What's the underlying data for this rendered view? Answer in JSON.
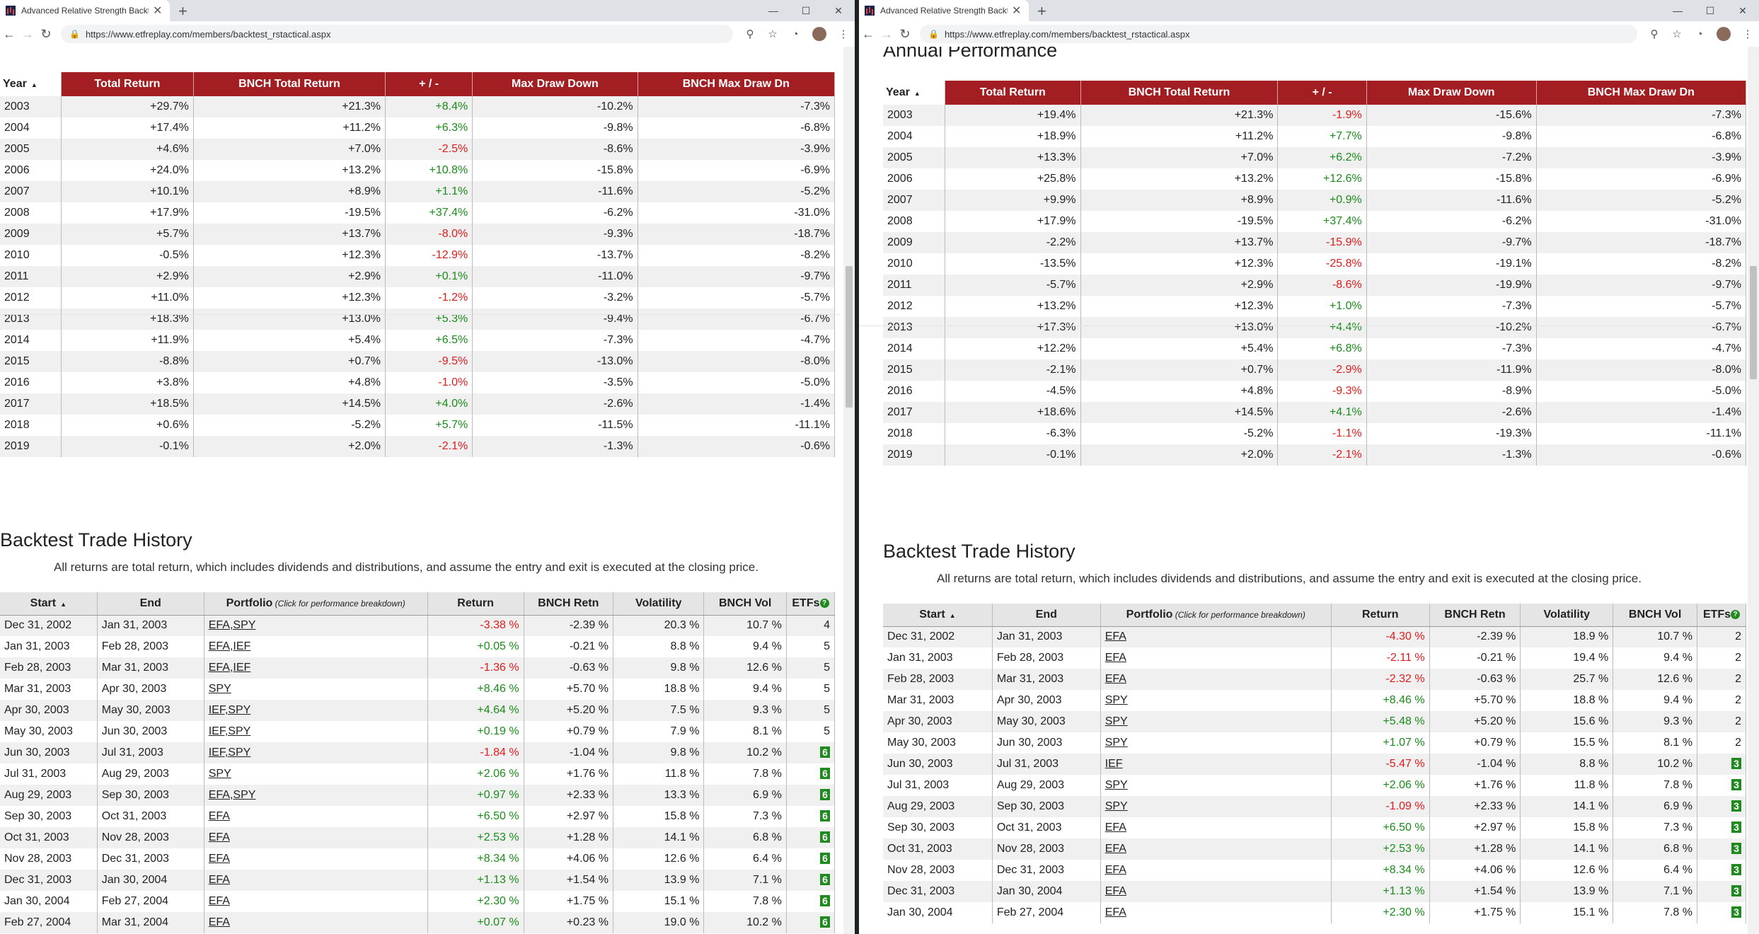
{
  "browser": {
    "tab_title": "Advanced Relative Strength Backtest",
    "url": "https://www.etfreplay.com/members/backtest_rstactical.aspx"
  },
  "annual_headers": [
    "Year",
    "Total Return",
    "BNCH Total Return",
    "+ / -",
    "Max Draw Down",
    "BNCH Max Draw Dn"
  ],
  "trade_headers": {
    "start": "Start",
    "end": "End",
    "portfolio": "Portfolio",
    "portfolio_note": "(Click for performance breakdown)",
    "ret": "Return",
    "bret": "BNCH Retn",
    "vol": "Volatility",
    "bvol": "BNCH Vol",
    "etfs": "ETFs",
    "help": "?"
  },
  "section_annual": "Annual Performance",
  "section_trade": "Backtest Trade History",
  "trade_note": "All returns are total return, which includes dividends and distributions, and assume the entry and exit is executed at the closing price.",
  "left": {
    "annual": [
      [
        "2003",
        "+29.7%",
        "+21.3%",
        "+8.4%",
        "-10.2%",
        "-7.3%"
      ],
      [
        "2004",
        "+17.4%",
        "+11.2%",
        "+6.3%",
        "-9.8%",
        "-6.8%"
      ],
      [
        "2005",
        "+4.6%",
        "+7.0%",
        "-2.5%",
        "-8.6%",
        "-3.9%"
      ],
      [
        "2006",
        "+24.0%",
        "+13.2%",
        "+10.8%",
        "-15.8%",
        "-6.9%"
      ],
      [
        "2007",
        "+10.1%",
        "+8.9%",
        "+1.1%",
        "-11.6%",
        "-5.2%"
      ],
      [
        "2008",
        "+17.9%",
        "-19.5%",
        "+37.4%",
        "-6.2%",
        "-31.0%"
      ],
      [
        "2009",
        "+5.7%",
        "+13.7%",
        "-8.0%",
        "-9.3%",
        "-18.7%"
      ],
      [
        "2010",
        "-0.5%",
        "+12.3%",
        "-12.9%",
        "-13.7%",
        "-8.2%"
      ],
      [
        "2011",
        "+2.9%",
        "+2.9%",
        "+0.1%",
        "-11.0%",
        "-9.7%"
      ],
      [
        "2012",
        "+11.0%",
        "+12.3%",
        "-1.2%",
        "-3.2%",
        "-5.7%"
      ],
      [
        "2013",
        "+18.3%",
        "+13.0%",
        "+5.3%",
        "-9.4%",
        "-6.7%"
      ],
      [
        "2014",
        "+11.9%",
        "+5.4%",
        "+6.5%",
        "-7.3%",
        "-4.7%"
      ],
      [
        "2015",
        "-8.8%",
        "+0.7%",
        "-9.5%",
        "-13.0%",
        "-8.0%"
      ],
      [
        "2016",
        "+3.8%",
        "+4.8%",
        "-1.0%",
        "-3.5%",
        "-5.0%"
      ],
      [
        "2017",
        "+18.5%",
        "+14.5%",
        "+4.0%",
        "-2.6%",
        "-1.4%"
      ],
      [
        "2018",
        "+0.6%",
        "-5.2%",
        "+5.7%",
        "-11.5%",
        "-11.1%"
      ],
      [
        "2019",
        "-0.1%",
        "+2.0%",
        "-2.1%",
        "-1.3%",
        "-0.6%"
      ]
    ],
    "trades": [
      [
        "Dec 31, 2002",
        "Jan 31, 2003",
        "EFA,SPY",
        "-3.38 %",
        "-2.39 %",
        "20.3 %",
        "10.7 %",
        "4"
      ],
      [
        "Jan 31, 2003",
        "Feb 28, 2003",
        "EFA,IEF",
        "+0.05 %",
        "-0.21 %",
        "8.8 %",
        "9.4 %",
        "5"
      ],
      [
        "Feb 28, 2003",
        "Mar 31, 2003",
        "EFA,IEF",
        "-1.36 %",
        "-0.63 %",
        "9.8 %",
        "12.6 %",
        "5"
      ],
      [
        "Mar 31, 2003",
        "Apr 30, 2003",
        "SPY",
        "+8.46 %",
        "+5.70 %",
        "18.8 %",
        "9.4 %",
        "5"
      ],
      [
        "Apr 30, 2003",
        "May 30, 2003",
        "IEF,SPY",
        "+4.64 %",
        "+5.20 %",
        "7.5 %",
        "9.3 %",
        "5"
      ],
      [
        "May 30, 2003",
        "Jun 30, 2003",
        "IEF,SPY",
        "+0.19 %",
        "+0.79 %",
        "7.9 %",
        "8.1 %",
        "5"
      ],
      [
        "Jun 30, 2003",
        "Jul 31, 2003",
        "IEF,SPY",
        "-1.84 %",
        "-1.04 %",
        "9.8 %",
        "10.2 %",
        "6"
      ],
      [
        "Jul 31, 2003",
        "Aug 29, 2003",
        "SPY",
        "+2.06 %",
        "+1.76 %",
        "11.8 %",
        "7.8 %",
        "6"
      ],
      [
        "Aug 29, 2003",
        "Sep 30, 2003",
        "EFA,SPY",
        "+0.97 %",
        "+2.33 %",
        "13.3 %",
        "6.9 %",
        "6"
      ],
      [
        "Sep 30, 2003",
        "Oct 31, 2003",
        "EFA",
        "+6.50 %",
        "+2.97 %",
        "15.8 %",
        "7.3 %",
        "6"
      ],
      [
        "Oct 31, 2003",
        "Nov 28, 2003",
        "EFA",
        "+2.53 %",
        "+1.28 %",
        "14.1 %",
        "6.8 %",
        "6"
      ],
      [
        "Nov 28, 2003",
        "Dec 31, 2003",
        "EFA",
        "+8.34 %",
        "+4.06 %",
        "12.6 %",
        "6.4 %",
        "6"
      ],
      [
        "Dec 31, 2003",
        "Jan 30, 2004",
        "EFA",
        "+1.13 %",
        "+1.54 %",
        "13.9 %",
        "7.1 %",
        "6"
      ],
      [
        "Jan 30, 2004",
        "Feb 27, 2004",
        "EFA",
        "+2.30 %",
        "+1.75 %",
        "15.1 %",
        "7.8 %",
        "6"
      ],
      [
        "Feb 27, 2004",
        "Mar 31, 2004",
        "EFA",
        "+0.07 %",
        "+0.23 %",
        "19.0 %",
        "10.2 %",
        "6"
      ]
    ]
  },
  "right": {
    "annual": [
      [
        "2003",
        "+19.4%",
        "+21.3%",
        "-1.9%",
        "-15.6%",
        "-7.3%"
      ],
      [
        "2004",
        "+18.9%",
        "+11.2%",
        "+7.7%",
        "-9.8%",
        "-6.8%"
      ],
      [
        "2005",
        "+13.3%",
        "+7.0%",
        "+6.2%",
        "-7.2%",
        "-3.9%"
      ],
      [
        "2006",
        "+25.8%",
        "+13.2%",
        "+12.6%",
        "-15.8%",
        "-6.9%"
      ],
      [
        "2007",
        "+9.9%",
        "+8.9%",
        "+0.9%",
        "-11.6%",
        "-5.2%"
      ],
      [
        "2008",
        "+17.9%",
        "-19.5%",
        "+37.4%",
        "-6.2%",
        "-31.0%"
      ],
      [
        "2009",
        "-2.2%",
        "+13.7%",
        "-15.9%",
        "-9.7%",
        "-18.7%"
      ],
      [
        "2010",
        "-13.5%",
        "+12.3%",
        "-25.8%",
        "-19.1%",
        "-8.2%"
      ],
      [
        "2011",
        "-5.7%",
        "+2.9%",
        "-8.6%",
        "-19.9%",
        "-9.7%"
      ],
      [
        "2012",
        "+13.2%",
        "+12.3%",
        "+1.0%",
        "-7.3%",
        "-5.7%"
      ],
      [
        "2013",
        "+17.3%",
        "+13.0%",
        "+4.4%",
        "-10.2%",
        "-6.7%"
      ],
      [
        "2014",
        "+12.2%",
        "+5.4%",
        "+6.8%",
        "-7.3%",
        "-4.7%"
      ],
      [
        "2015",
        "-2.1%",
        "+0.7%",
        "-2.9%",
        "-11.9%",
        "-8.0%"
      ],
      [
        "2016",
        "-4.5%",
        "+4.8%",
        "-9.3%",
        "-8.9%",
        "-5.0%"
      ],
      [
        "2017",
        "+18.6%",
        "+14.5%",
        "+4.1%",
        "-2.6%",
        "-1.4%"
      ],
      [
        "2018",
        "-6.3%",
        "-5.2%",
        "-1.1%",
        "-19.3%",
        "-11.1%"
      ],
      [
        "2019",
        "-0.1%",
        "+2.0%",
        "-2.1%",
        "-1.3%",
        "-0.6%"
      ]
    ],
    "trades": [
      [
        "Dec 31, 2002",
        "Jan 31, 2003",
        "EFA",
        "-4.30 %",
        "-2.39 %",
        "18.9 %",
        "10.7 %",
        "2"
      ],
      [
        "Jan 31, 2003",
        "Feb 28, 2003",
        "EFA",
        "-2.11 %",
        "-0.21 %",
        "19.4 %",
        "9.4 %",
        "2"
      ],
      [
        "Feb 28, 2003",
        "Mar 31, 2003",
        "EFA",
        "-2.32 %",
        "-0.63 %",
        "25.7 %",
        "12.6 %",
        "2"
      ],
      [
        "Mar 31, 2003",
        "Apr 30, 2003",
        "SPY",
        "+8.46 %",
        "+5.70 %",
        "18.8 %",
        "9.4 %",
        "2"
      ],
      [
        "Apr 30, 2003",
        "May 30, 2003",
        "SPY",
        "+5.48 %",
        "+5.20 %",
        "15.6 %",
        "9.3 %",
        "2"
      ],
      [
        "May 30, 2003",
        "Jun 30, 2003",
        "SPY",
        "+1.07 %",
        "+0.79 %",
        "15.5 %",
        "8.1 %",
        "2"
      ],
      [
        "Jun 30, 2003",
        "Jul 31, 2003",
        "IEF",
        "-5.47 %",
        "-1.04 %",
        "8.8 %",
        "10.2 %",
        "3"
      ],
      [
        "Jul 31, 2003",
        "Aug 29, 2003",
        "SPY",
        "+2.06 %",
        "+1.76 %",
        "11.8 %",
        "7.8 %",
        "3"
      ],
      [
        "Aug 29, 2003",
        "Sep 30, 2003",
        "SPY",
        "-1.09 %",
        "+2.33 %",
        "14.1 %",
        "6.9 %",
        "3"
      ],
      [
        "Sep 30, 2003",
        "Oct 31, 2003",
        "EFA",
        "+6.50 %",
        "+2.97 %",
        "15.8 %",
        "7.3 %",
        "3"
      ],
      [
        "Oct 31, 2003",
        "Nov 28, 2003",
        "EFA",
        "+2.53 %",
        "+1.28 %",
        "14.1 %",
        "6.8 %",
        "3"
      ],
      [
        "Nov 28, 2003",
        "Dec 31, 2003",
        "EFA",
        "+8.34 %",
        "+4.06 %",
        "12.6 %",
        "6.4 %",
        "3"
      ],
      [
        "Dec 31, 2003",
        "Jan 30, 2004",
        "EFA",
        "+1.13 %",
        "+1.54 %",
        "13.9 %",
        "7.1 %",
        "3"
      ],
      [
        "Jan 30, 2004",
        "Feb 27, 2004",
        "EFA",
        "+2.30 %",
        "+1.75 %",
        "15.1 %",
        "7.8 %",
        "3"
      ]
    ]
  },
  "colors": {
    "header_red": "#a31e22",
    "positive": "#1a8b1a",
    "negative": "#e01b1b",
    "badge_green": "#1f8b1f"
  },
  "icons": [
    "back-icon",
    "forward-icon",
    "reload-icon",
    "lock-icon",
    "zoom-icon",
    "star-icon",
    "extension-icon",
    "menu-icon",
    "sort-asc-icon",
    "help-icon"
  ]
}
